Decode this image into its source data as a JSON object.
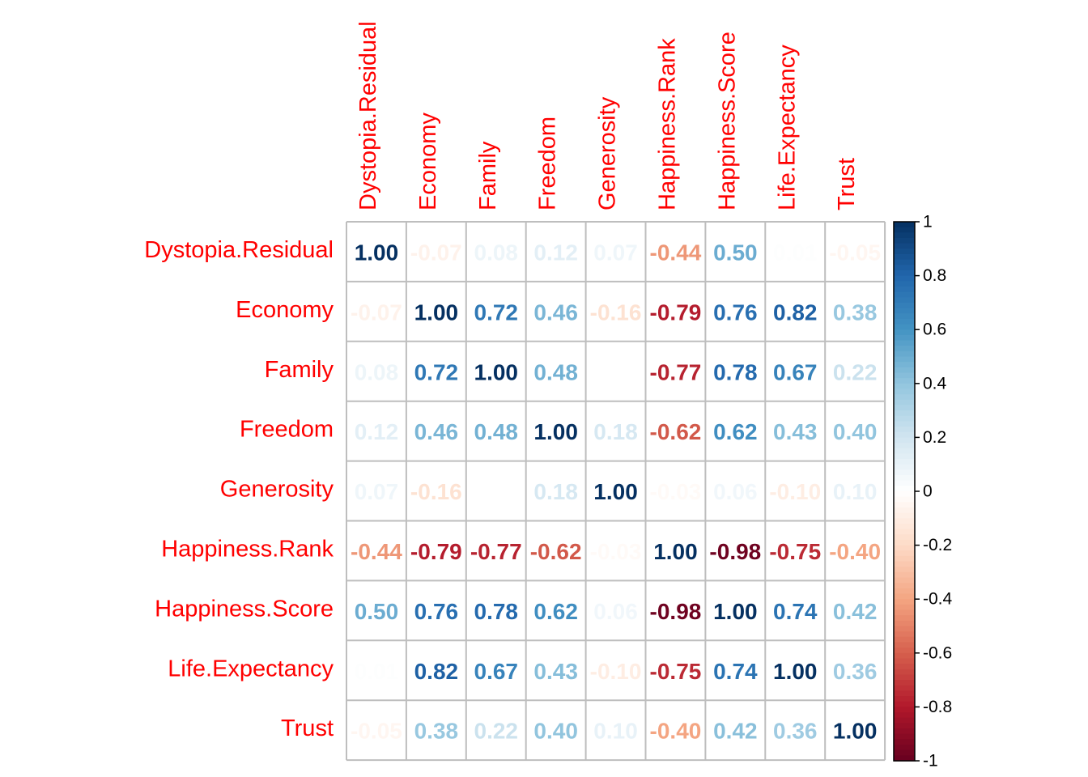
{
  "chart_data": {
    "type": "heatmap",
    "variables": [
      "Dystopia.Residual",
      "Economy",
      "Family",
      "Freedom",
      "Generosity",
      "Happiness.Rank",
      "Happiness.Score",
      "Life.Expectancy",
      "Trust"
    ],
    "matrix": [
      [
        1.0,
        -0.07,
        0.08,
        0.12,
        0.07,
        -0.44,
        0.5,
        0.01,
        -0.05
      ],
      [
        -0.07,
        1.0,
        0.72,
        0.46,
        -0.16,
        -0.79,
        0.76,
        0.82,
        0.38
      ],
      [
        0.08,
        0.72,
        1.0,
        0.48,
        0.0,
        -0.77,
        0.78,
        0.67,
        0.22
      ],
      [
        0.12,
        0.46,
        0.48,
        1.0,
        0.18,
        -0.62,
        0.62,
        0.43,
        0.4
      ],
      [
        0.07,
        -0.16,
        0.0,
        0.18,
        1.0,
        -0.03,
        0.06,
        -0.1,
        0.1
      ],
      [
        -0.44,
        -0.79,
        -0.77,
        -0.62,
        -0.03,
        1.0,
        -0.98,
        -0.75,
        -0.4
      ],
      [
        0.5,
        0.76,
        0.78,
        0.62,
        0.06,
        -0.98,
        1.0,
        0.74,
        0.42
      ],
      [
        0.01,
        0.82,
        0.67,
        0.43,
        -0.1,
        -0.75,
        0.74,
        1.0,
        0.36
      ],
      [
        -0.05,
        0.38,
        0.22,
        0.4,
        0.1,
        -0.4,
        0.42,
        0.36,
        1.0
      ]
    ],
    "color_scale": {
      "min": -1,
      "max": 1,
      "ticks": [
        "1",
        "0.8",
        "0.6",
        "0.4",
        "0.2",
        "0",
        "-0.2",
        "-0.4",
        "-0.6",
        "-0.8",
        "-1"
      ]
    },
    "label_color": "#FF0000",
    "grid_color": "#BEBEBE",
    "palette": [
      "#67001F",
      "#B2182B",
      "#D6604D",
      "#F4A582",
      "#FDDBC7",
      "#FFFFFF",
      "#D1E5F0",
      "#92C5DE",
      "#4393C3",
      "#2166AC",
      "#053061"
    ]
  }
}
